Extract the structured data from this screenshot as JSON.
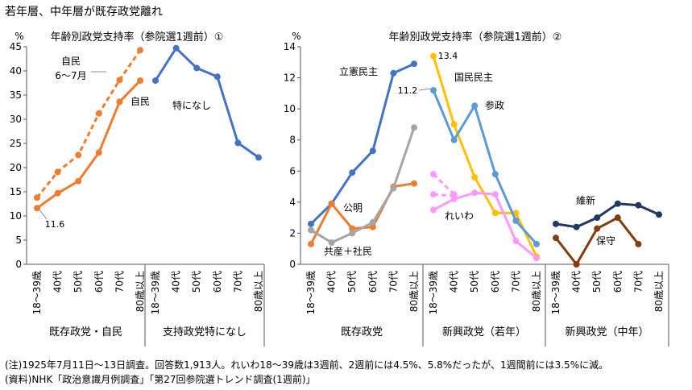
{
  "page": {
    "title": "若年層、中年層が既存政党離れ",
    "note": "(注)1925年7月11日〜13日調査。回答数1,913人。れいわ18〜39歳は3週前、2週前には4.5%、5.8%だったが、1週間前には3.5%に減。",
    "source": "(資料)NHK「政治意識月例調査」「第27回参院選トレンド調査(1週前)」"
  },
  "chart_data": [
    {
      "type": "line",
      "title": "年齢別政党支持率（参院選1週前）①",
      "unit": "%",
      "ylim": [
        0,
        45
      ],
      "yticks": [
        0,
        5,
        10,
        15,
        20,
        25,
        30,
        35,
        40,
        45
      ],
      "categories": [
        "18〜39歳",
        "40代",
        "50代",
        "60代",
        "70代",
        "80歳以上"
      ],
      "groups": [
        {
          "label": "既存政党・自民",
          "series": [
            {
              "name": "自民",
              "color": "#ED7D31",
              "dashed": false,
              "values": [
                11.6,
                14.7,
                17.2,
                23.1,
                33.6,
                38.0
              ]
            },
            {
              "name": "自民\n6〜7月",
              "color": "#ED7D31",
              "dashed": true,
              "values": [
                13.8,
                19.1,
                22.6,
                31.2,
                38.1,
                44.3
              ]
            }
          ]
        },
        {
          "label": "支持政党特になし",
          "series": [
            {
              "name": "特になし",
              "color": "#4472C4",
              "dashed": false,
              "values": [
                38.0,
                44.7,
                40.6,
                38.8,
                25.1,
                22.1
              ]
            }
          ]
        }
      ],
      "annotations": [
        "11.6"
      ]
    },
    {
      "type": "line",
      "title": "年齢別政党支持率（参院選1週前）②",
      "unit": "%",
      "ylim": [
        0,
        14
      ],
      "yticks": [
        0,
        2,
        4,
        6,
        8,
        10,
        12,
        14
      ],
      "categories": [
        "18〜39歳",
        "40代",
        "50代",
        "60代",
        "70代",
        "80歳以上"
      ],
      "groups": [
        {
          "label": "既存政党",
          "series": [
            {
              "name": "立憲民主",
              "color": "#4472C4",
              "dashed": false,
              "values": [
                2.6,
                3.9,
                5.9,
                7.3,
                12.3,
                12.9
              ]
            },
            {
              "name": "公明",
              "color": "#ED7D31",
              "dashed": false,
              "values": [
                1.3,
                3.9,
                2.3,
                2.4,
                5.0,
                5.2
              ]
            },
            {
              "name": "共産＋社民",
              "color": "#A5A5A5",
              "dashed": false,
              "values": [
                2.2,
                1.4,
                2.0,
                2.7,
                4.9,
                8.8
              ]
            }
          ]
        },
        {
          "label": "新興政党（若年）",
          "series": [
            {
              "name": "国民民主",
              "color": "#FFC000",
              "dashed": false,
              "values": [
                13.4,
                9.0,
                5.6,
                3.3,
                3.3,
                0.5
              ]
            },
            {
              "name": "参政",
              "color": "#5B9BD5",
              "dashed": false,
              "values": [
                11.2,
                8.0,
                10.2,
                5.8,
                2.8,
                1.3
              ]
            },
            {
              "name": "れいわ",
              "color": "#FF99FF",
              "dashed": false,
              "values": [
                3.5,
                4.2,
                4.6,
                4.5,
                1.5,
                0.4
              ]
            },
            {
              "name": "",
              "color": "#FF99FF",
              "dashed": true,
              "points": [
                [
                  0,
                  5.8
                ],
                [
                  1,
                  4.5
                ]
              ]
            },
            {
              "name": "",
              "color": "#FF99FF",
              "dashed": true,
              "points": [
                [
                  0,
                  4.5
                ],
                [
                  1,
                  4.4
                ]
              ]
            }
          ]
        },
        {
          "label": "新興政党（中年）",
          "categories": [
            "18〜39歳",
            "40代",
            "50代",
            "60代",
            "70代",
            "80歳以上"
          ],
          "series": [
            {
              "name": "維新",
              "color": "#203864",
              "dashed": false,
              "values": [
                2.6,
                2.4,
                3.0,
                3.9,
                3.8,
                3.2
              ]
            },
            {
              "name": "保守",
              "color": "#843C0C",
              "dashed": false,
              "values": [
                1.7,
                0.0,
                2.3,
                3.0,
                1.3,
                null
              ]
            }
          ]
        }
      ],
      "annotations": [
        "13.4",
        "11.2"
      ]
    }
  ]
}
